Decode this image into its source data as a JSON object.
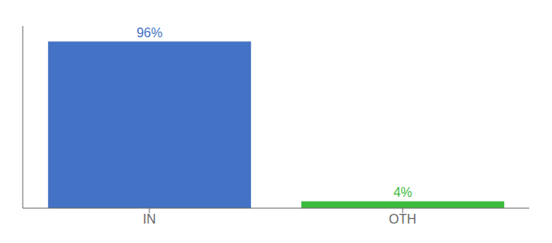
{
  "chart_data": {
    "type": "bar",
    "categories": [
      "IN",
      "OTH"
    ],
    "values": [
      96,
      4
    ],
    "value_labels": [
      "96%",
      "4%"
    ],
    "colors": [
      "#4472c4",
      "#3dbb3d"
    ],
    "ylim": [
      0,
      105
    ],
    "data_labels": true,
    "tick_labels": "x",
    "grid": false
  }
}
